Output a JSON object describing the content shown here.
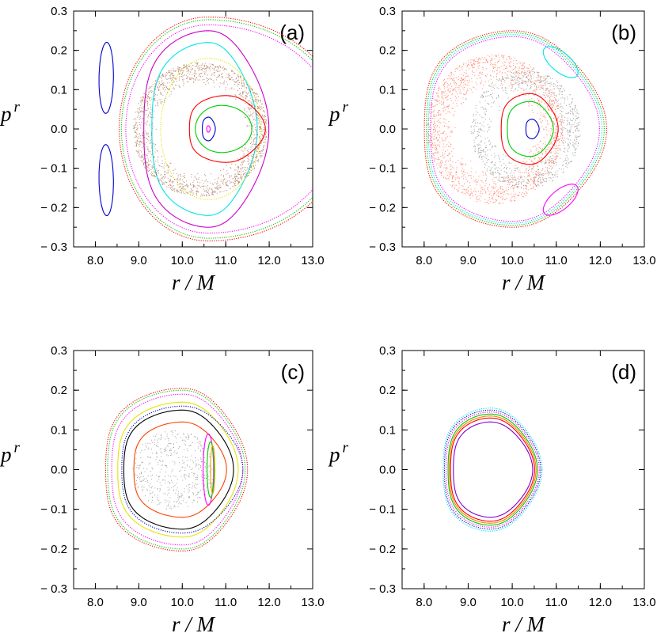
{
  "chart_data": [
    {
      "type": "scatter",
      "panel_label": "(a)",
      "xlabel_symbol": "r",
      "xlabel_unit": "M",
      "xlabel_sep": "/",
      "ylabel_symbol": "p",
      "ylabel_sup": "r",
      "xlim": [
        7.5,
        13.0
      ],
      "ylim": [
        -0.3,
        0.3
      ],
      "xticks": [
        "8.0",
        "9.0",
        "10.0",
        "11.0",
        "12.0",
        "13.0"
      ],
      "yticks": [
        "0.3",
        "0.2",
        "0.1",
        "0.0",
        "− 0.1",
        "− 0.2",
        "− 0.3"
      ],
      "grid": false,
      "series": [
        {
          "kind": "torus",
          "color": "#ff0000",
          "cx": 10.6,
          "a1": 2.05,
          "a2": 3.15,
          "b": 0.285,
          "dotted": true
        },
        {
          "kind": "torus",
          "color": "#00cc00",
          "cx": 10.6,
          "a1": 2.0,
          "a2": 3.08,
          "b": 0.278,
          "dotted": true
        },
        {
          "kind": "torus",
          "color": "#ff00ff",
          "cx": 10.6,
          "a1": 1.9,
          "a2": 2.95,
          "b": 0.265,
          "dotted": true
        },
        {
          "kind": "torus",
          "color": "#cc00cc",
          "cx": 10.6,
          "a1": 1.6,
          "a2": 1.3,
          "b": 0.25,
          "dotted": false
        },
        {
          "kind": "torus",
          "color": "#00e5e5",
          "cx": 10.6,
          "a1": 1.4,
          "a2": 1.05,
          "b": 0.22,
          "dotted": false
        },
        {
          "kind": "torus",
          "color": "#e5e500",
          "cx": 10.6,
          "a1": 1.1,
          "a2": 1.2,
          "b": 0.18,
          "dotted": true
        },
        {
          "kind": "island",
          "color": "#0000cc",
          "cx": 8.25,
          "cy": 0.13,
          "rx": 0.18,
          "ry": 0.09,
          "tilt": 0.4
        },
        {
          "kind": "island",
          "color": "#0000cc",
          "cx": 8.25,
          "cy": -0.13,
          "rx": 0.18,
          "ry": 0.09,
          "tilt": -0.4
        },
        {
          "kind": "chaos",
          "color": "#a06040",
          "cx": 10.4,
          "rx": 1.55,
          "ry": 0.17,
          "inner": 0.65,
          "n": 1700
        },
        {
          "kind": "torus",
          "color": "#ff0000",
          "cx": 11.0,
          "a1": 0.9,
          "a2": 0.85,
          "b": 0.085,
          "dotted": false
        },
        {
          "kind": "torus",
          "color": "#00cc00",
          "cx": 10.9,
          "a1": 0.6,
          "a2": 0.7,
          "b": 0.06,
          "dotted": false
        },
        {
          "kind": "torus",
          "color": "#0000cc",
          "cx": 10.6,
          "a1": 0.15,
          "a2": 0.15,
          "b": 0.03,
          "dotted": false
        },
        {
          "kind": "torus",
          "color": "#ff00ff",
          "cx": 10.6,
          "a1": 0.04,
          "a2": 0.04,
          "b": 0.008,
          "dotted": false
        }
      ]
    },
    {
      "type": "scatter",
      "panel_label": "(b)",
      "xlabel_symbol": "r",
      "xlabel_unit": "M",
      "xlabel_sep": "/",
      "ylabel_symbol": "p",
      "ylabel_sup": "r",
      "xlim": [
        7.5,
        13.0
      ],
      "ylim": [
        -0.3,
        0.3
      ],
      "xticks": [
        "8.0",
        "9.0",
        "10.0",
        "11.0",
        "12.0",
        "13.0"
      ],
      "yticks": [
        "0.3",
        "0.2",
        "0.1",
        "0.0",
        "− 0.1",
        "− 0.2",
        "− 0.3"
      ],
      "grid": false,
      "series": [
        {
          "kind": "torus",
          "color": "#ff0000",
          "cx": 10.0,
          "a1": 2.15,
          "a2": 2.0,
          "b": 0.25,
          "dotted": true
        },
        {
          "kind": "torus",
          "color": "#00cc00",
          "cx": 10.0,
          "a1": 2.1,
          "a2": 1.95,
          "b": 0.245,
          "dotted": true
        },
        {
          "kind": "torus",
          "color": "#00e5e5",
          "cx": 10.0,
          "a1": 2.05,
          "a2": 1.9,
          "b": 0.24,
          "dotted": true
        },
        {
          "kind": "torus",
          "color": "#ff00ff",
          "cx": 10.0,
          "a1": 2.0,
          "a2": 1.85,
          "b": 0.235,
          "dotted": true
        },
        {
          "kind": "chaos",
          "color": "#ff6040",
          "cx": 9.6,
          "rx": 1.55,
          "ry": 0.19,
          "inner": 0.55,
          "n": 1700
        },
        {
          "kind": "chaos",
          "color": "#808080",
          "cx": 10.3,
          "rx": 1.25,
          "ry": 0.15,
          "inner": 0.55,
          "n": 900
        },
        {
          "kind": "island",
          "color": "#00e5e5",
          "cx": 11.1,
          "cy": 0.17,
          "rx": 0.45,
          "ry": 0.03,
          "tilt": -0.5
        },
        {
          "kind": "island",
          "color": "#ff00ff",
          "cx": 11.1,
          "cy": -0.18,
          "rx": 0.45,
          "ry": 0.03,
          "tilt": 0.5
        },
        {
          "kind": "torus",
          "color": "#ff0000",
          "cx": 10.4,
          "a1": 0.7,
          "a2": 0.6,
          "b": 0.09,
          "dotted": false
        },
        {
          "kind": "torus",
          "color": "#00cc00",
          "cx": 10.4,
          "a1": 0.55,
          "a2": 0.5,
          "b": 0.07,
          "dotted": false
        },
        {
          "kind": "torus",
          "color": "#0000cc",
          "cx": 10.45,
          "a1": 0.15,
          "a2": 0.15,
          "b": 0.025,
          "dotted": false
        }
      ]
    },
    {
      "type": "scatter",
      "panel_label": "(c)",
      "xlabel_symbol": "r",
      "xlabel_unit": "M",
      "xlabel_sep": "/",
      "ylabel_symbol": "p",
      "ylabel_sup": "r",
      "xlim": [
        7.5,
        13.0
      ],
      "ylim": [
        -0.3,
        0.3
      ],
      "xticks": [
        "8.0",
        "9.0",
        "10.0",
        "11.0",
        "12.0",
        "13.0"
      ],
      "yticks": [
        "0.3",
        "0.2",
        "0.1",
        "0.0",
        "− 0.1",
        "− 0.2",
        "− 0.3"
      ],
      "grid": false,
      "series": [
        {
          "kind": "torus",
          "color": "#ff0000",
          "cx": 10.0,
          "a1": 1.9,
          "a2": 1.4,
          "b": 0.205,
          "dotted": true
        },
        {
          "kind": "torus",
          "color": "#00cc00",
          "cx": 10.0,
          "a1": 1.85,
          "a2": 1.35,
          "b": 0.2,
          "dotted": true
        },
        {
          "kind": "torus",
          "color": "#ff00ff",
          "cx": 10.0,
          "a1": 1.75,
          "a2": 1.3,
          "b": 0.19,
          "dotted": true
        },
        {
          "kind": "torus",
          "color": "#e5e500",
          "cx": 10.0,
          "a1": 1.6,
          "a2": 1.2,
          "b": 0.17,
          "dotted": false
        },
        {
          "kind": "torus",
          "color": "#000000",
          "cx": 10.0,
          "a1": 1.45,
          "a2": 1.1,
          "b": 0.15,
          "dotted": false
        },
        {
          "kind": "torus",
          "color": "#ff4000",
          "cx": 10.0,
          "a1": 1.2,
          "a2": 0.95,
          "b": 0.12,
          "dotted": false
        },
        {
          "kind": "torus",
          "color": "#0000cc",
          "cx": 10.0,
          "a1": 1.5,
          "a2": 1.3,
          "b": 0.16,
          "dotted": true
        },
        {
          "kind": "chaos",
          "color": "#808080",
          "cx": 9.8,
          "rx": 0.95,
          "ry": 0.1,
          "inner": 0.0,
          "n": 500
        },
        {
          "kind": "island",
          "color": "#ff00ff",
          "cx": 10.6,
          "cy": 0.0,
          "rx": 0.12,
          "ry": 0.09,
          "tilt": 0.0
        },
        {
          "kind": "island",
          "color": "#00cc00",
          "cx": 10.65,
          "cy": 0.0,
          "rx": 0.08,
          "ry": 0.07,
          "tilt": 0.0
        },
        {
          "kind": "island",
          "color": "#e5a000",
          "cx": 10.7,
          "cy": 0.0,
          "rx": 0.05,
          "ry": 0.06,
          "tilt": 0.0
        }
      ]
    },
    {
      "type": "scatter",
      "panel_label": "(d)",
      "xlabel_symbol": "r",
      "xlabel_unit": "M",
      "xlabel_sep": "/",
      "ylabel_symbol": "p",
      "ylabel_sup": "r",
      "xlim": [
        7.5,
        13.0
      ],
      "ylim": [
        -0.3,
        0.3
      ],
      "xticks": [
        "8.0",
        "9.0",
        "10.0",
        "11.0",
        "12.0",
        "13.0"
      ],
      "yticks": [
        "0.3",
        "0.2",
        "0.1",
        "0.0",
        "− 0.1",
        "− 0.2",
        "− 0.3"
      ],
      "grid": false,
      "series": [
        {
          "kind": "torus",
          "color": "#00e5e5",
          "cx": 9.5,
          "a1": 1.15,
          "a2": 1.1,
          "b": 0.155,
          "dotted": true
        },
        {
          "kind": "torus",
          "color": "#0000cc",
          "cx": 9.5,
          "a1": 1.12,
          "a2": 1.07,
          "b": 0.15,
          "dotted": true
        },
        {
          "kind": "torus",
          "color": "#ff00ff",
          "cx": 9.5,
          "a1": 1.08,
          "a2": 1.04,
          "b": 0.145,
          "dotted": true
        },
        {
          "kind": "torus",
          "color": "#00cc00",
          "cx": 9.5,
          "a1": 1.03,
          "a2": 1.0,
          "b": 0.14,
          "dotted": false
        },
        {
          "kind": "torus",
          "color": "#ff8000",
          "cx": 9.5,
          "a1": 1.0,
          "a2": 0.97,
          "b": 0.135,
          "dotted": false
        },
        {
          "kind": "torus",
          "color": "#ff0000",
          "cx": 9.5,
          "a1": 0.97,
          "a2": 0.94,
          "b": 0.13,
          "dotted": false
        },
        {
          "kind": "torus",
          "color": "#8000cc",
          "cx": 9.5,
          "a1": 0.9,
          "a2": 0.9,
          "b": 0.12,
          "dotted": false
        }
      ]
    }
  ]
}
